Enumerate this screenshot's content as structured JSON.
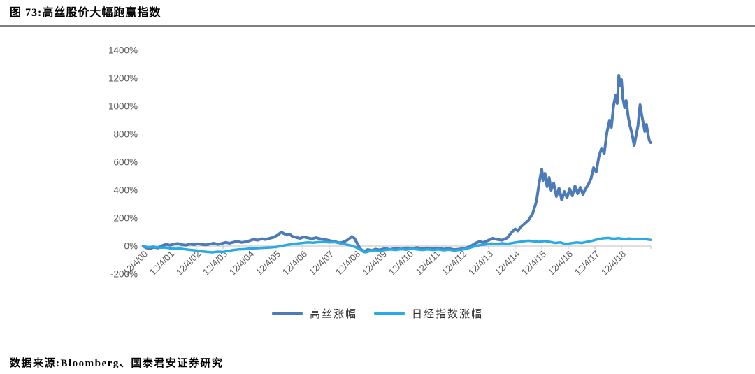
{
  "figure": {
    "title": "图 73:高丝股价大幅跑赢指数",
    "source": "数据来源:Bloomberg、国泰君安证券研究"
  },
  "chart_data": {
    "type": "line",
    "title": "高丝股价大幅跑赢指数",
    "xlabel": "",
    "ylabel": "",
    "ylim": [
      -200,
      1400
    ],
    "grid": false,
    "legend_position": "bottom",
    "y_ticks": [
      1400,
      1200,
      1000,
      800,
      600,
      400,
      200,
      0,
      -200
    ],
    "y_tick_labels": [
      "1400%",
      "1200%",
      "1000%",
      "800%",
      "600%",
      "400%",
      "200%",
      "0%",
      "-200%"
    ],
    "x_tick_labels": [
      "12/4/00",
      "12/4/01",
      "12/4/02",
      "12/4/03",
      "12/4/04",
      "12/4/05",
      "12/4/06",
      "12/4/07",
      "12/4/08",
      "12/4/09",
      "12/4/10",
      "12/4/11",
      "12/4/12",
      "12/4/13",
      "12/4/14",
      "12/4/15",
      "12/4/16",
      "12/4/17",
      "12/4/18"
    ],
    "x_unit_note": "points use x = years after 12/4/00, y = cumulative return %",
    "series": [
      {
        "id": "kose",
        "name": "高丝涨幅",
        "color": "#4d7ab8",
        "points": [
          [
            0,
            0
          ],
          [
            0.1,
            -12
          ],
          [
            0.25,
            -18
          ],
          [
            0.4,
            -8
          ],
          [
            0.55,
            -14
          ],
          [
            0.7,
            2
          ],
          [
            0.85,
            12
          ],
          [
            1.0,
            6
          ],
          [
            1.15,
            14
          ],
          [
            1.3,
            18
          ],
          [
            1.45,
            10
          ],
          [
            1.6,
            6
          ],
          [
            1.75,
            14
          ],
          [
            1.9,
            10
          ],
          [
            2.05,
            16
          ],
          [
            2.2,
            12
          ],
          [
            2.35,
            8
          ],
          [
            2.5,
            14
          ],
          [
            2.65,
            20
          ],
          [
            2.8,
            12
          ],
          [
            2.95,
            18
          ],
          [
            3.1,
            26
          ],
          [
            3.25,
            20
          ],
          [
            3.4,
            28
          ],
          [
            3.55,
            33
          ],
          [
            3.7,
            26
          ],
          [
            3.85,
            30
          ],
          [
            4.0,
            38
          ],
          [
            4.15,
            48
          ],
          [
            4.3,
            42
          ],
          [
            4.45,
            52
          ],
          [
            4.6,
            47
          ],
          [
            4.75,
            55
          ],
          [
            4.9,
            62
          ],
          [
            5.05,
            78
          ],
          [
            5.2,
            100
          ],
          [
            5.3,
            88
          ],
          [
            5.4,
            78
          ],
          [
            5.5,
            86
          ],
          [
            5.6,
            70
          ],
          [
            5.75,
            62
          ],
          [
            5.9,
            55
          ],
          [
            6.05,
            65
          ],
          [
            6.2,
            58
          ],
          [
            6.35,
            52
          ],
          [
            6.5,
            60
          ],
          [
            6.65,
            52
          ],
          [
            6.8,
            48
          ],
          [
            6.95,
            42
          ],
          [
            7.1,
            35
          ],
          [
            7.25,
            30
          ],
          [
            7.4,
            22
          ],
          [
            7.55,
            30
          ],
          [
            7.7,
            45
          ],
          [
            7.85,
            68
          ],
          [
            7.95,
            55
          ],
          [
            8.05,
            20
          ],
          [
            8.15,
            -15
          ],
          [
            8.3,
            -42
          ],
          [
            8.45,
            -25
          ],
          [
            8.6,
            -32
          ],
          [
            8.75,
            -22
          ],
          [
            8.9,
            -28
          ],
          [
            9.1,
            -18
          ],
          [
            9.3,
            -24
          ],
          [
            9.5,
            -16
          ],
          [
            9.7,
            -22
          ],
          [
            9.9,
            -14
          ],
          [
            10.1,
            -18
          ],
          [
            10.3,
            -12
          ],
          [
            10.5,
            -18
          ],
          [
            10.7,
            -14
          ],
          [
            10.9,
            -20
          ],
          [
            11.1,
            -16
          ],
          [
            11.3,
            -22
          ],
          [
            11.5,
            -18
          ],
          [
            11.7,
            -26
          ],
          [
            11.9,
            -22
          ],
          [
            12.1,
            -16
          ],
          [
            12.3,
            -4
          ],
          [
            12.5,
            20
          ],
          [
            12.65,
            32
          ],
          [
            12.8,
            26
          ],
          [
            13.0,
            42
          ],
          [
            13.15,
            55
          ],
          [
            13.3,
            48
          ],
          [
            13.5,
            42
          ],
          [
            13.7,
            58
          ],
          [
            13.85,
            95
          ],
          [
            14.0,
            122
          ],
          [
            14.1,
            108
          ],
          [
            14.2,
            135
          ],
          [
            14.35,
            160
          ],
          [
            14.5,
            185
          ],
          [
            14.65,
            230
          ],
          [
            14.8,
            320
          ],
          [
            14.9,
            450
          ],
          [
            15.0,
            550
          ],
          [
            15.05,
            470
          ],
          [
            15.12,
            520
          ],
          [
            15.2,
            425
          ],
          [
            15.28,
            490
          ],
          [
            15.35,
            400
          ],
          [
            15.45,
            450
          ],
          [
            15.55,
            355
          ],
          [
            15.65,
            415
          ],
          [
            15.75,
            330
          ],
          [
            15.85,
            390
          ],
          [
            15.95,
            345
          ],
          [
            16.05,
            410
          ],
          [
            16.15,
            360
          ],
          [
            16.25,
            430
          ],
          [
            16.35,
            375
          ],
          [
            16.45,
            420
          ],
          [
            16.55,
            370
          ],
          [
            16.65,
            410
          ],
          [
            16.75,
            440
          ],
          [
            16.85,
            480
          ],
          [
            16.95,
            560
          ],
          [
            17.05,
            530
          ],
          [
            17.15,
            640
          ],
          [
            17.25,
            700
          ],
          [
            17.35,
            660
          ],
          [
            17.45,
            810
          ],
          [
            17.55,
            900
          ],
          [
            17.62,
            850
          ],
          [
            17.7,
            1000
          ],
          [
            17.78,
            1080
          ],
          [
            17.84,
            1020
          ],
          [
            17.9,
            1220
          ],
          [
            17.95,
            1150
          ],
          [
            18.0,
            1190
          ],
          [
            18.05,
            1060
          ],
          [
            18.12,
            990
          ],
          [
            18.18,
            1040
          ],
          [
            18.25,
            930
          ],
          [
            18.32,
            860
          ],
          [
            18.4,
            800
          ],
          [
            18.48,
            720
          ],
          [
            18.55,
            790
          ],
          [
            18.62,
            860
          ],
          [
            18.7,
            1010
          ],
          [
            18.76,
            940
          ],
          [
            18.82,
            880
          ],
          [
            18.88,
            820
          ],
          [
            18.94,
            870
          ],
          [
            19.0,
            800
          ],
          [
            19.05,
            755
          ],
          [
            19.1,
            740
          ]
        ]
      },
      {
        "id": "nikkei",
        "name": "日经指数涨幅",
        "color": "#29abe2",
        "points": [
          [
            0,
            -2
          ],
          [
            0.2,
            -8
          ],
          [
            0.4,
            -4
          ],
          [
            0.6,
            -12
          ],
          [
            0.8,
            -10
          ],
          [
            1.0,
            -16
          ],
          [
            1.2,
            -20
          ],
          [
            1.4,
            -18
          ],
          [
            1.6,
            -24
          ],
          [
            1.8,
            -28
          ],
          [
            2.0,
            -32
          ],
          [
            2.2,
            -38
          ],
          [
            2.4,
            -42
          ],
          [
            2.6,
            -45
          ],
          [
            2.8,
            -40
          ],
          [
            3.0,
            -42
          ],
          [
            3.2,
            -35
          ],
          [
            3.4,
            -28
          ],
          [
            3.6,
            -24
          ],
          [
            3.8,
            -22
          ],
          [
            4.0,
            -18
          ],
          [
            4.2,
            -16
          ],
          [
            4.4,
            -14
          ],
          [
            4.6,
            -12
          ],
          [
            4.8,
            -10
          ],
          [
            5.0,
            -6
          ],
          [
            5.2,
            0
          ],
          [
            5.4,
            8
          ],
          [
            5.6,
            14
          ],
          [
            5.8,
            18
          ],
          [
            6.0,
            22
          ],
          [
            6.2,
            26
          ],
          [
            6.4,
            24
          ],
          [
            6.6,
            28
          ],
          [
            6.8,
            30
          ],
          [
            7.0,
            26
          ],
          [
            7.2,
            28
          ],
          [
            7.4,
            20
          ],
          [
            7.6,
            12
          ],
          [
            7.8,
            4
          ],
          [
            8.0,
            -8
          ],
          [
            8.2,
            -30
          ],
          [
            8.35,
            -45
          ],
          [
            8.5,
            -38
          ],
          [
            8.7,
            -30
          ],
          [
            8.9,
            -34
          ],
          [
            9.1,
            -28
          ],
          [
            9.3,
            -24
          ],
          [
            9.5,
            -28
          ],
          [
            9.7,
            -22
          ],
          [
            9.9,
            -26
          ],
          [
            10.1,
            -20
          ],
          [
            10.3,
            -24
          ],
          [
            10.5,
            -28
          ],
          [
            10.7,
            -24
          ],
          [
            10.9,
            -28
          ],
          [
            11.1,
            -24
          ],
          [
            11.3,
            -30
          ],
          [
            11.5,
            -26
          ],
          [
            11.7,
            -32
          ],
          [
            11.9,
            -28
          ],
          [
            12.1,
            -22
          ],
          [
            12.3,
            -12
          ],
          [
            12.5,
            0
          ],
          [
            12.7,
            8
          ],
          [
            12.9,
            12
          ],
          [
            13.1,
            18
          ],
          [
            13.3,
            14
          ],
          [
            13.5,
            20
          ],
          [
            13.7,
            16
          ],
          [
            13.9,
            22
          ],
          [
            14.1,
            28
          ],
          [
            14.3,
            34
          ],
          [
            14.5,
            38
          ],
          [
            14.7,
            34
          ],
          [
            14.9,
            30
          ],
          [
            15.1,
            36
          ],
          [
            15.3,
            30
          ],
          [
            15.5,
            22
          ],
          [
            15.7,
            26
          ],
          [
            15.9,
            14
          ],
          [
            16.1,
            20
          ],
          [
            16.3,
            26
          ],
          [
            16.5,
            22
          ],
          [
            16.7,
            30
          ],
          [
            16.9,
            38
          ],
          [
            17.1,
            48
          ],
          [
            17.3,
            55
          ],
          [
            17.5,
            58
          ],
          [
            17.7,
            52
          ],
          [
            17.9,
            56
          ],
          [
            18.1,
            50
          ],
          [
            18.3,
            54
          ],
          [
            18.5,
            48
          ],
          [
            18.7,
            52
          ],
          [
            18.9,
            50
          ],
          [
            19.0,
            46
          ],
          [
            19.1,
            44
          ]
        ]
      }
    ]
  }
}
